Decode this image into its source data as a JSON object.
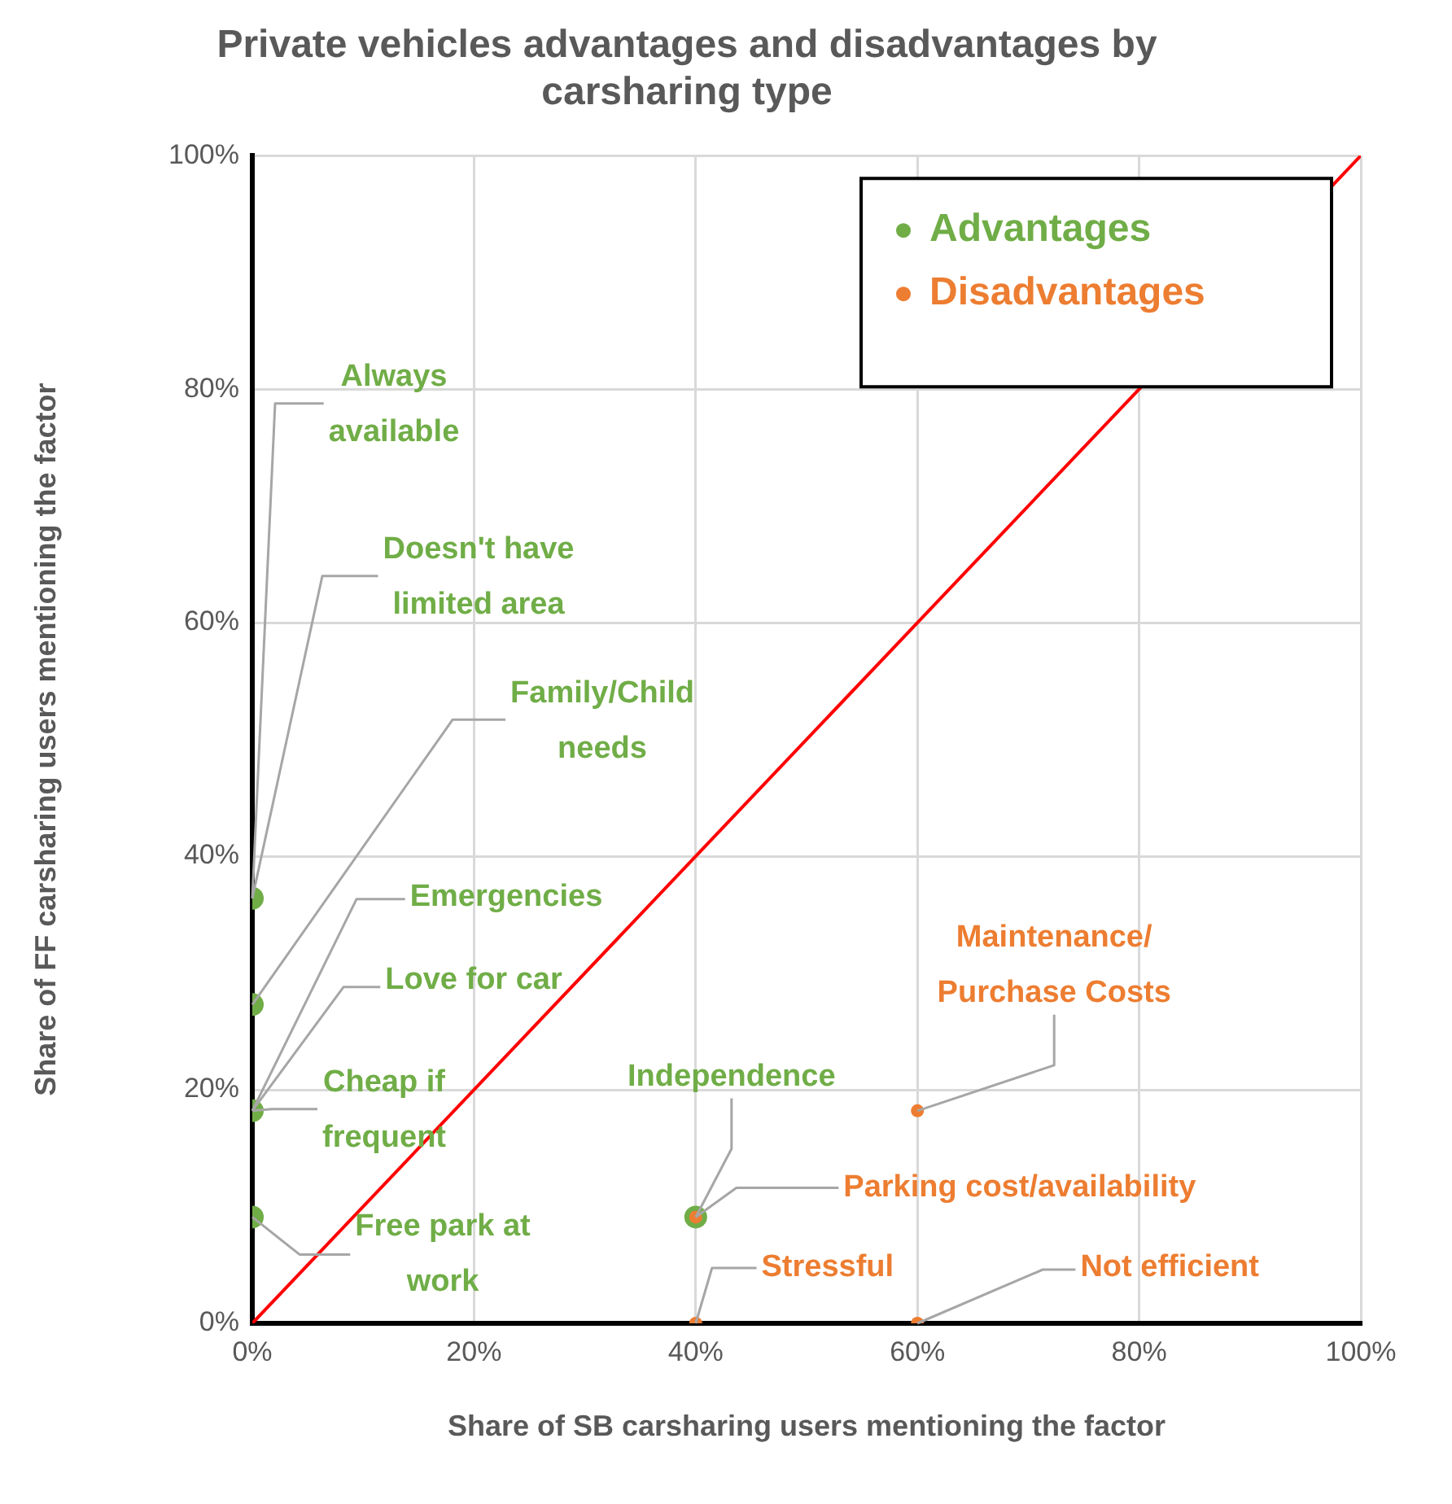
{
  "chart_data": {
    "type": "scatter",
    "title": "Private vehicles advantages and disadvantages by carsharing type",
    "xlabel": "Share of SB carsharing users mentioning the factor",
    "ylabel": "Share of FF carsharing users mentioning the factor",
    "xlim": [
      0,
      100
    ],
    "ylim": [
      0,
      100
    ],
    "xticks": [
      {
        "value": 0,
        "label": "0%"
      },
      {
        "value": 20,
        "label": "20%"
      },
      {
        "value": 40,
        "label": "40%"
      },
      {
        "value": 60,
        "label": "60%"
      },
      {
        "value": 80,
        "label": "80%"
      },
      {
        "value": 100,
        "label": "100%"
      }
    ],
    "yticks": [
      {
        "value": 0,
        "label": "0%"
      },
      {
        "value": 20,
        "label": "20%"
      },
      {
        "value": 40,
        "label": "40%"
      },
      {
        "value": 60,
        "label": "60%"
      },
      {
        "value": 80,
        "label": "80%"
      },
      {
        "value": 100,
        "label": "100%"
      }
    ],
    "grid": true,
    "legend": "top right",
    "marker": "circle",
    "series": [
      {
        "name": "Advantages",
        "color": "#70ad47",
        "x": [
          0,
          0,
          0,
          0,
          40
        ],
        "values": [
          36.4,
          27.3,
          18.2,
          9.1,
          9.1
        ]
      },
      {
        "name": "Disadvantages",
        "color": "#ed7d31",
        "x": [
          60,
          40,
          40,
          60
        ],
        "values": [
          18.2,
          9.1,
          0,
          0
        ]
      },
      {
        "type": "line",
        "color": "#ff0000",
        "marker": "none",
        "x": [
          0,
          100
        ],
        "values": [
          0,
          100
        ]
      }
    ],
    "annotations": [
      {
        "text": "Always available",
        "x": 0,
        "y": 36.4
      },
      {
        "text": "Doesn't have limited area",
        "x": 0,
        "y": 36.4
      },
      {
        "text": "Family/Child needs",
        "x": 0,
        "y": 27.3
      },
      {
        "text": "Emergencies",
        "x": 0,
        "y": 18.2
      },
      {
        "text": "Love for car",
        "x": 0,
        "y": 18.2
      },
      {
        "text": "Cheap if frequent",
        "x": 0,
        "y": 18.2
      },
      {
        "text": "Free park at work",
        "x": 0,
        "y": 9.1
      },
      {
        "text": "Independence",
        "x": 40,
        "y": 9.1
      },
      {
        "text": "Maintenance/ Purchase Costs",
        "x": 60,
        "y": 18.2
      },
      {
        "text": "Parking cost/availability",
        "x": 40,
        "y": 9.1
      },
      {
        "text": "Stressful",
        "x": 40,
        "y": 0
      },
      {
        "text": "Not efficient",
        "x": 60,
        "y": 0
      }
    ]
  }
}
